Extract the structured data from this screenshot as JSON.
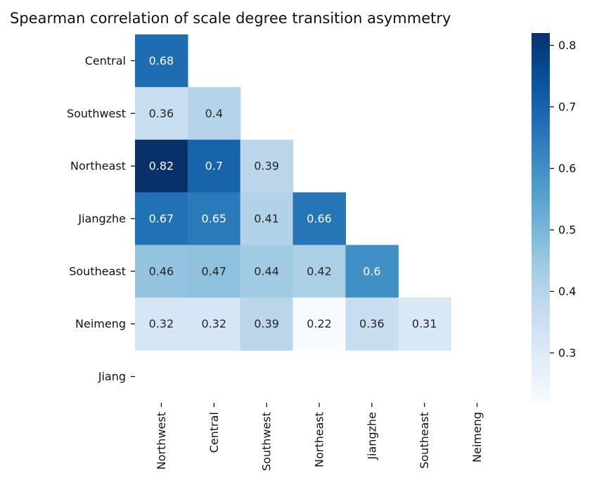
{
  "chart_data": {
    "type": "heatmap",
    "title": "Spearman correlation of scale degree transition asymmetry",
    "rows": [
      "Central",
      "Southwest",
      "Northeast",
      "Jiangzhe",
      "Southeast",
      "Neimeng",
      "Jiang"
    ],
    "cols": [
      "Northwest",
      "Central",
      "Southwest",
      "Northeast",
      "Jiangzhe",
      "Southeast",
      "Neimeng"
    ],
    "values": [
      [
        0.68,
        null,
        null,
        null,
        null,
        null,
        null
      ],
      [
        0.36,
        0.4,
        null,
        null,
        null,
        null,
        null
      ],
      [
        0.82,
        0.7,
        0.39,
        null,
        null,
        null,
        null
      ],
      [
        0.67,
        0.65,
        0.41,
        0.66,
        null,
        null,
        null
      ],
      [
        0.46,
        0.47,
        0.44,
        0.42,
        0.6,
        null,
        null
      ],
      [
        0.32,
        0.32,
        0.39,
        0.22,
        0.36,
        0.31,
        null
      ],
      [
        null,
        null,
        null,
        null,
        null,
        null,
        null
      ]
    ],
    "value_labels": [
      [
        "0.68",
        "",
        "",
        "",
        "",
        "",
        ""
      ],
      [
        "0.36",
        "0.4",
        "",
        "",
        "",
        "",
        ""
      ],
      [
        "0.82",
        "0.7",
        "0.39",
        "",
        "",
        "",
        ""
      ],
      [
        "0.67",
        "0.65",
        "0.41",
        "0.66",
        "",
        "",
        ""
      ],
      [
        "0.46",
        "0.47",
        "0.44",
        "0.42",
        "0.6",
        "",
        ""
      ],
      [
        "0.32",
        "0.32",
        "0.39",
        "0.22",
        "0.36",
        "0.31",
        ""
      ],
      [
        "",
        "",
        "",
        "",
        "",
        "",
        ""
      ]
    ],
    "colorbar": {
      "min": 0.22,
      "max": 0.82,
      "ticks": [
        0.3,
        0.4,
        0.5,
        0.6,
        0.7,
        0.8
      ],
      "tick_labels": [
        "0.3",
        "0.4",
        "0.5",
        "0.6",
        "0.7",
        "0.8"
      ],
      "colormap": "Blues",
      "colormap_stops": [
        "#f7fbff",
        "#deebf7",
        "#c6dbef",
        "#9ecae1",
        "#6baed6",
        "#4292c6",
        "#2171b5",
        "#08519c",
        "#08306b"
      ]
    },
    "masked": "upper-triangle",
    "grid": false,
    "legend": "colorbar-right"
  }
}
